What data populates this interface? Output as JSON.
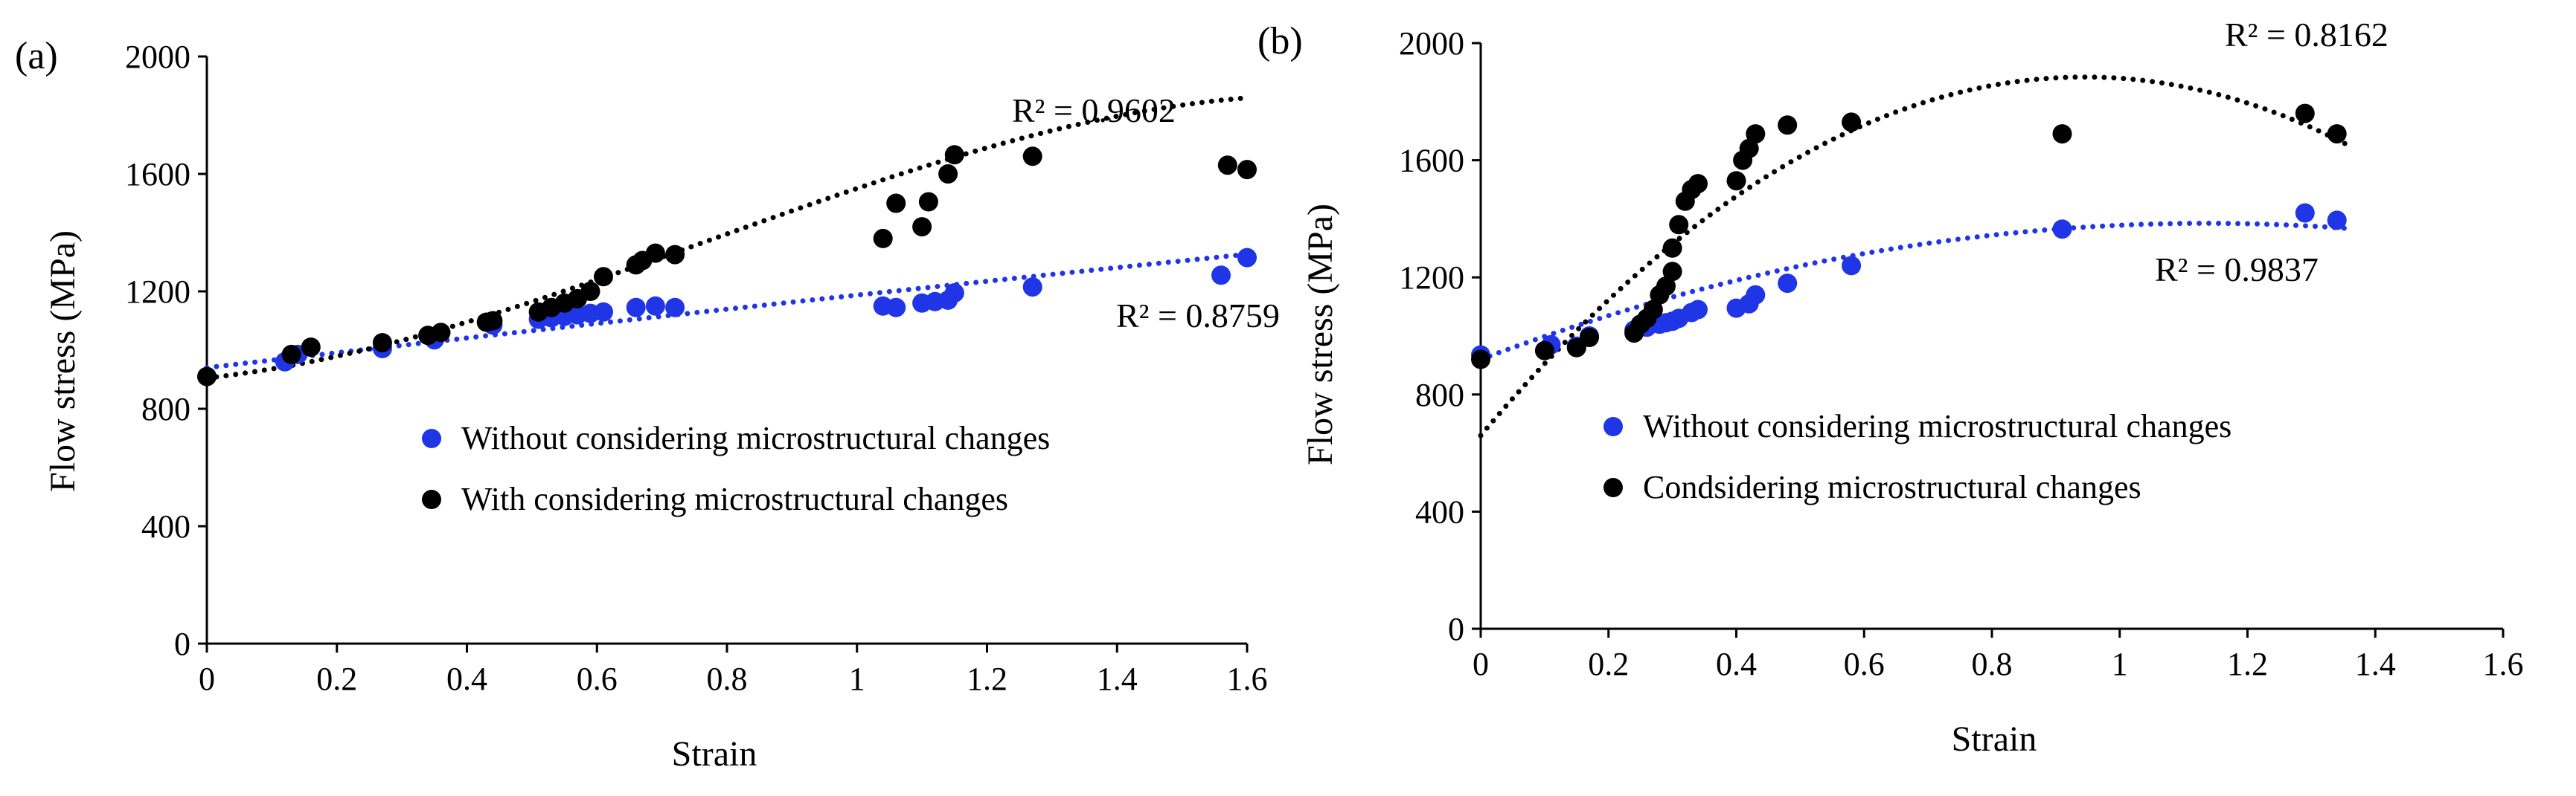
{
  "chart_data": [
    {
      "type": "scatter",
      "panel_label": "(a)",
      "xlabel": "Strain",
      "ylabel": "Flow stress (MPa)",
      "xlim": [
        0,
        1.6
      ],
      "ylim": [
        0,
        2000
      ],
      "xticks": [
        0,
        0.2,
        0.4,
        0.6,
        0.8,
        1,
        1.2,
        1.4,
        1.6
      ],
      "xtick_labels": [
        "0",
        "0.2",
        "0.4",
        "0.6",
        "0.8",
        "1",
        "1.2",
        "1.4",
        "1.6"
      ],
      "yticks": [
        0,
        400,
        800,
        1200,
        1600,
        2000
      ],
      "ytick_labels": [
        "0",
        "400",
        "800",
        "1200",
        "1600",
        "2000"
      ],
      "legend_position": "center",
      "series": [
        {
          "name": "Without considering microstructural changes",
          "color": "#1f35e6",
          "x": [
            0.12,
            0.14,
            0.27,
            0.35,
            0.44,
            0.51,
            0.53,
            0.55,
            0.57,
            0.59,
            0.61,
            0.66,
            0.69,
            0.72,
            1.04,
            1.06,
            1.1,
            1.12,
            1.14,
            1.15,
            1.27,
            1.56,
            1.6
          ],
          "y": [
            960,
            985,
            1005,
            1035,
            1085,
            1105,
            1110,
            1115,
            1120,
            1125,
            1130,
            1145,
            1150,
            1145,
            1150,
            1145,
            1160,
            1165,
            1170,
            1195,
            1215,
            1255,
            1315
          ],
          "trendline": {
            "r2_label": "R² = 0.8759",
            "color": "#1f35e6",
            "fit": [
              -9.15,
              256.3,
              940.0
            ]
          }
        },
        {
          "name": "With considering microstructural changes",
          "color": "#000000",
          "x": [
            0,
            0.13,
            0.16,
            0.27,
            0.34,
            0.36,
            0.43,
            0.44,
            0.51,
            0.53,
            0.55,
            0.57,
            0.59,
            0.61,
            0.66,
            0.67,
            0.69,
            0.72,
            1.04,
            1.06,
            1.1,
            1.11,
            1.14,
            1.15,
            1.27,
            1.57,
            1.6
          ],
          "y": [
            910,
            985,
            1010,
            1025,
            1050,
            1060,
            1095,
            1100,
            1130,
            1145,
            1160,
            1175,
            1200,
            1250,
            1290,
            1305,
            1330,
            1325,
            1380,
            1500,
            1420,
            1505,
            1600,
            1665,
            1660,
            1630,
            1615
          ],
          "trendline": {
            "r2_label": "R² = 0.9602",
            "color": "#000000",
            "fit": [
              -304.4,
              709.5,
              240.3,
              905.0
            ]
          }
        }
      ]
    },
    {
      "type": "scatter",
      "panel_label": "(b)",
      "xlabel": "Strain",
      "ylabel": "Flow stress (MPa)",
      "xlim": [
        0,
        1.6
      ],
      "ylim": [
        0,
        2000
      ],
      "xticks": [
        0,
        0.2,
        0.4,
        0.6,
        0.8,
        1,
        1.2,
        1.4,
        1.6
      ],
      "xtick_labels": [
        "0",
        "0.2",
        "0.4",
        "0.6",
        "0.8",
        "1",
        "1.2",
        "1.4",
        "1.6"
      ],
      "yticks": [
        0,
        400,
        800,
        1200,
        1600,
        2000
      ],
      "ytick_labels": [
        "0",
        "400",
        "800",
        "1200",
        "1600",
        "2000"
      ],
      "legend_position": "center",
      "series": [
        {
          "name": "Without considering microstructural changes",
          "color": "#1f35e6",
          "x": [
            0,
            0.11,
            0.15,
            0.17,
            0.24,
            0.26,
            0.28,
            0.29,
            0.3,
            0.31,
            0.33,
            0.34,
            0.4,
            0.42,
            0.43,
            0.48,
            0.58,
            0.91,
            1.29,
            1.34
          ],
          "y": [
            935,
            970,
            965,
            1000,
            1020,
            1030,
            1040,
            1045,
            1050,
            1060,
            1080,
            1090,
            1095,
            1110,
            1140,
            1180,
            1240,
            1365,
            1420,
            1395
          ],
          "trendline": {
            "r2_label": "R² = 0.9837",
            "color": "#1f35e6",
            "fit": [
              -360.0,
              818.0,
              920.0
            ]
          }
        },
        {
          "name": "Condsidering microstructural changes",
          "color": "#000000",
          "x": [
            0,
            0.1,
            0.15,
            0.17,
            0.24,
            0.25,
            0.26,
            0.27,
            0.28,
            0.29,
            0.3,
            0.3,
            0.31,
            0.32,
            0.33,
            0.34,
            0.4,
            0.41,
            0.42,
            0.43,
            0.48,
            0.58,
            0.91,
            1.29,
            1.34
          ],
          "y": [
            920,
            950,
            960,
            995,
            1010,
            1040,
            1060,
            1090,
            1140,
            1170,
            1220,
            1300,
            1380,
            1460,
            1500,
            1520,
            1530,
            1600,
            1640,
            1690,
            1720,
            1730,
            1690,
            1760,
            1690
          ],
          "trendline": {
            "r2_label": "R² = 0.8162",
            "color": "#000000",
            "fit": [
              -1370.0,
              2590.0,
              660.0
            ]
          }
        }
      ]
    }
  ]
}
